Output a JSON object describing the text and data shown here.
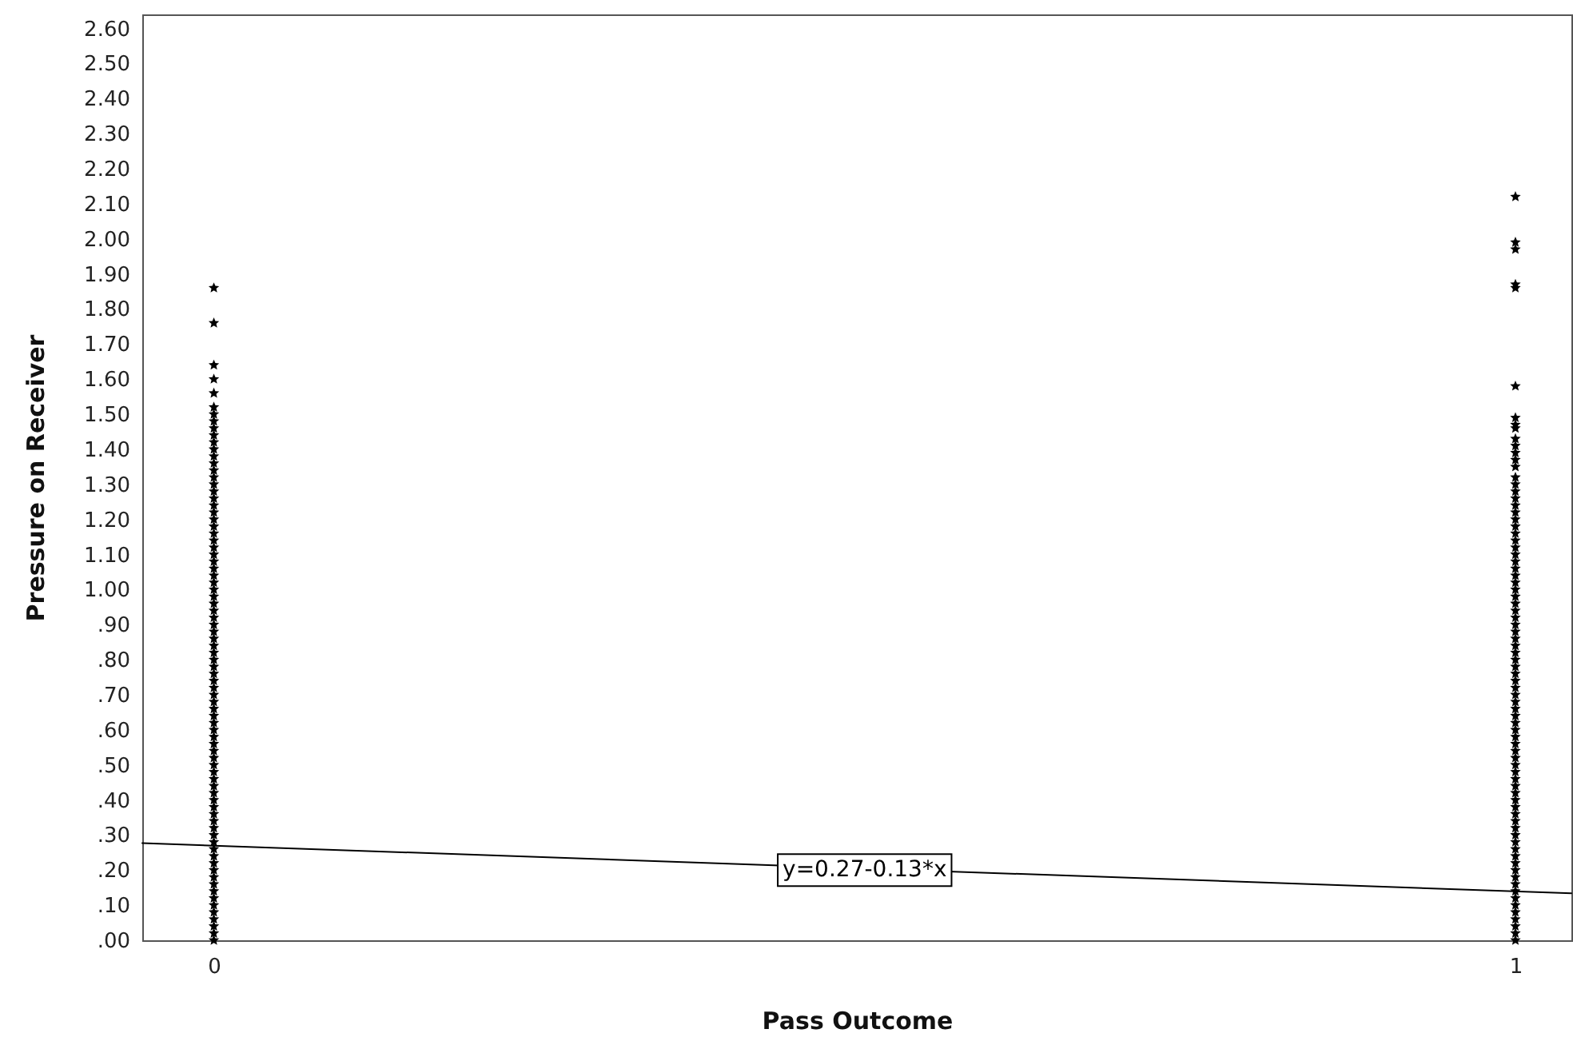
{
  "chart_data": {
    "type": "scatter",
    "xlabel": "Pass Outcome",
    "ylabel": "Pressure on Receiver",
    "xlim": [
      -0.055,
      1.043
    ],
    "xticks": [
      0,
      1
    ],
    "ylim": [
      0,
      2.64
    ],
    "yticks": [
      {
        "value": 0,
        "label": ".00"
      },
      {
        "value": 0.1,
        "label": ".10"
      },
      {
        "value": 0.2,
        "label": ".20"
      },
      {
        "value": 0.3,
        "label": ".30"
      },
      {
        "value": 0.4,
        "label": ".40"
      },
      {
        "value": 0.5,
        "label": ".50"
      },
      {
        "value": 0.6,
        "label": ".60"
      },
      {
        "value": 0.7,
        "label": ".70"
      },
      {
        "value": 0.8,
        "label": ".80"
      },
      {
        "value": 0.9,
        "label": ".90"
      },
      {
        "value": 1,
        "label": "1.00"
      },
      {
        "value": 1.1,
        "label": "1.10"
      },
      {
        "value": 1.2,
        "label": "1.20"
      },
      {
        "value": 1.3,
        "label": "1.30"
      },
      {
        "value": 1.4,
        "label": "1.40"
      },
      {
        "value": 1.5,
        "label": "1.50"
      },
      {
        "value": 1.6,
        "label": "1.60"
      },
      {
        "value": 1.7,
        "label": "1.70"
      },
      {
        "value": 1.8,
        "label": "1.80"
      },
      {
        "value": 1.9,
        "label": "1.90"
      },
      {
        "value": 2,
        "label": "2.00"
      },
      {
        "value": 2.1,
        "label": "2.10"
      },
      {
        "value": 2.2,
        "label": "2.20"
      },
      {
        "value": 2.3,
        "label": "2.30"
      },
      {
        "value": 2.4,
        "label": "2.40"
      },
      {
        "value": 2.5,
        "label": "2.50"
      },
      {
        "value": 2.6,
        "label": "2.60"
      }
    ],
    "series": [
      {
        "color": "#000000",
        "marker": "star",
        "x": [
          0,
          0,
          0,
          0,
          0,
          0,
          0,
          0,
          0,
          0,
          0,
          0,
          0,
          0,
          0,
          0,
          0,
          0,
          0,
          0,
          0,
          0,
          0,
          0,
          0,
          0,
          0,
          0,
          0,
          0,
          0,
          0,
          0,
          0,
          0,
          0,
          0,
          0,
          0,
          0,
          0,
          0,
          0,
          0,
          0,
          0,
          0,
          0,
          0,
          0,
          0,
          0,
          0,
          0,
          0,
          0,
          0,
          0,
          0,
          0,
          0,
          0,
          0,
          0,
          0,
          0,
          0,
          0,
          0,
          0,
          0,
          0,
          0,
          0,
          0,
          0,
          0,
          0,
          0,
          0,
          0,
          0
        ],
        "values": [
          0,
          0.02,
          0.04,
          0.06,
          0.08,
          0.1,
          0.12,
          0.14,
          0.16,
          0.18,
          0.2,
          0.22,
          0.24,
          0.26,
          0.28,
          0.3,
          0.32,
          0.34,
          0.36,
          0.38,
          0.4,
          0.42,
          0.44,
          0.46,
          0.48,
          0.5,
          0.52,
          0.54,
          0.56,
          0.58,
          0.6,
          0.62,
          0.64,
          0.66,
          0.68,
          0.7,
          0.72,
          0.74,
          0.76,
          0.78,
          0.8,
          0.82,
          0.84,
          0.86,
          0.88,
          0.9,
          0.92,
          0.94,
          0.96,
          0.98,
          1,
          1.02,
          1.04,
          1.06,
          1.08,
          1.1,
          1.12,
          1.14,
          1.16,
          1.18,
          1.2,
          1.22,
          1.24,
          1.26,
          1.28,
          1.3,
          1.32,
          1.34,
          1.36,
          1.38,
          1.4,
          1.42,
          1.44,
          1.46,
          1.48,
          1.5,
          1.52,
          1.56,
          1.6,
          1.64,
          1.76,
          1.86
        ]
      },
      {
        "color": "#000000",
        "marker": "star",
        "x": [
          1,
          1,
          1,
          1,
          1,
          1,
          1,
          1,
          1,
          1,
          1,
          1,
          1,
          1,
          1,
          1,
          1,
          1,
          1,
          1,
          1,
          1,
          1,
          1,
          1,
          1,
          1,
          1,
          1,
          1,
          1,
          1,
          1,
          1,
          1,
          1,
          1,
          1,
          1,
          1,
          1,
          1,
          1,
          1,
          1,
          1,
          1,
          1,
          1,
          1,
          1,
          1,
          1,
          1,
          1,
          1,
          1,
          1,
          1,
          1,
          1,
          1,
          1,
          1,
          1,
          1,
          1,
          1,
          1,
          1,
          1,
          1,
          1,
          1,
          1,
          1,
          1,
          1,
          1,
          1,
          1
        ],
        "values": [
          0,
          0.02,
          0.04,
          0.06,
          0.08,
          0.1,
          0.12,
          0.14,
          0.16,
          0.18,
          0.2,
          0.22,
          0.24,
          0.26,
          0.28,
          0.3,
          0.32,
          0.34,
          0.36,
          0.38,
          0.4,
          0.42,
          0.44,
          0.46,
          0.48,
          0.5,
          0.52,
          0.54,
          0.56,
          0.58,
          0.6,
          0.62,
          0.64,
          0.66,
          0.68,
          0.7,
          0.72,
          0.74,
          0.76,
          0.78,
          0.8,
          0.82,
          0.84,
          0.86,
          0.88,
          0.9,
          0.92,
          0.94,
          0.96,
          0.98,
          1,
          1.02,
          1.04,
          1.06,
          1.08,
          1.1,
          1.12,
          1.14,
          1.16,
          1.18,
          1.2,
          1.22,
          1.24,
          1.26,
          1.28,
          1.3,
          1.32,
          1.35,
          1.37,
          1.39,
          1.41,
          1.43,
          1.46,
          1.47,
          1.49,
          1.58,
          1.86,
          1.87,
          1.97,
          1.99,
          2.12
        ]
      },
      {
        "type": "line",
        "color": "#000000",
        "x": [
          -0.055,
          1.043
        ],
        "values": [
          0.277,
          0.134
        ]
      }
    ],
    "annotations": [
      {
        "text": "y=0.27-0.13*x",
        "x": 0.5,
        "y": 0.2
      }
    ]
  }
}
